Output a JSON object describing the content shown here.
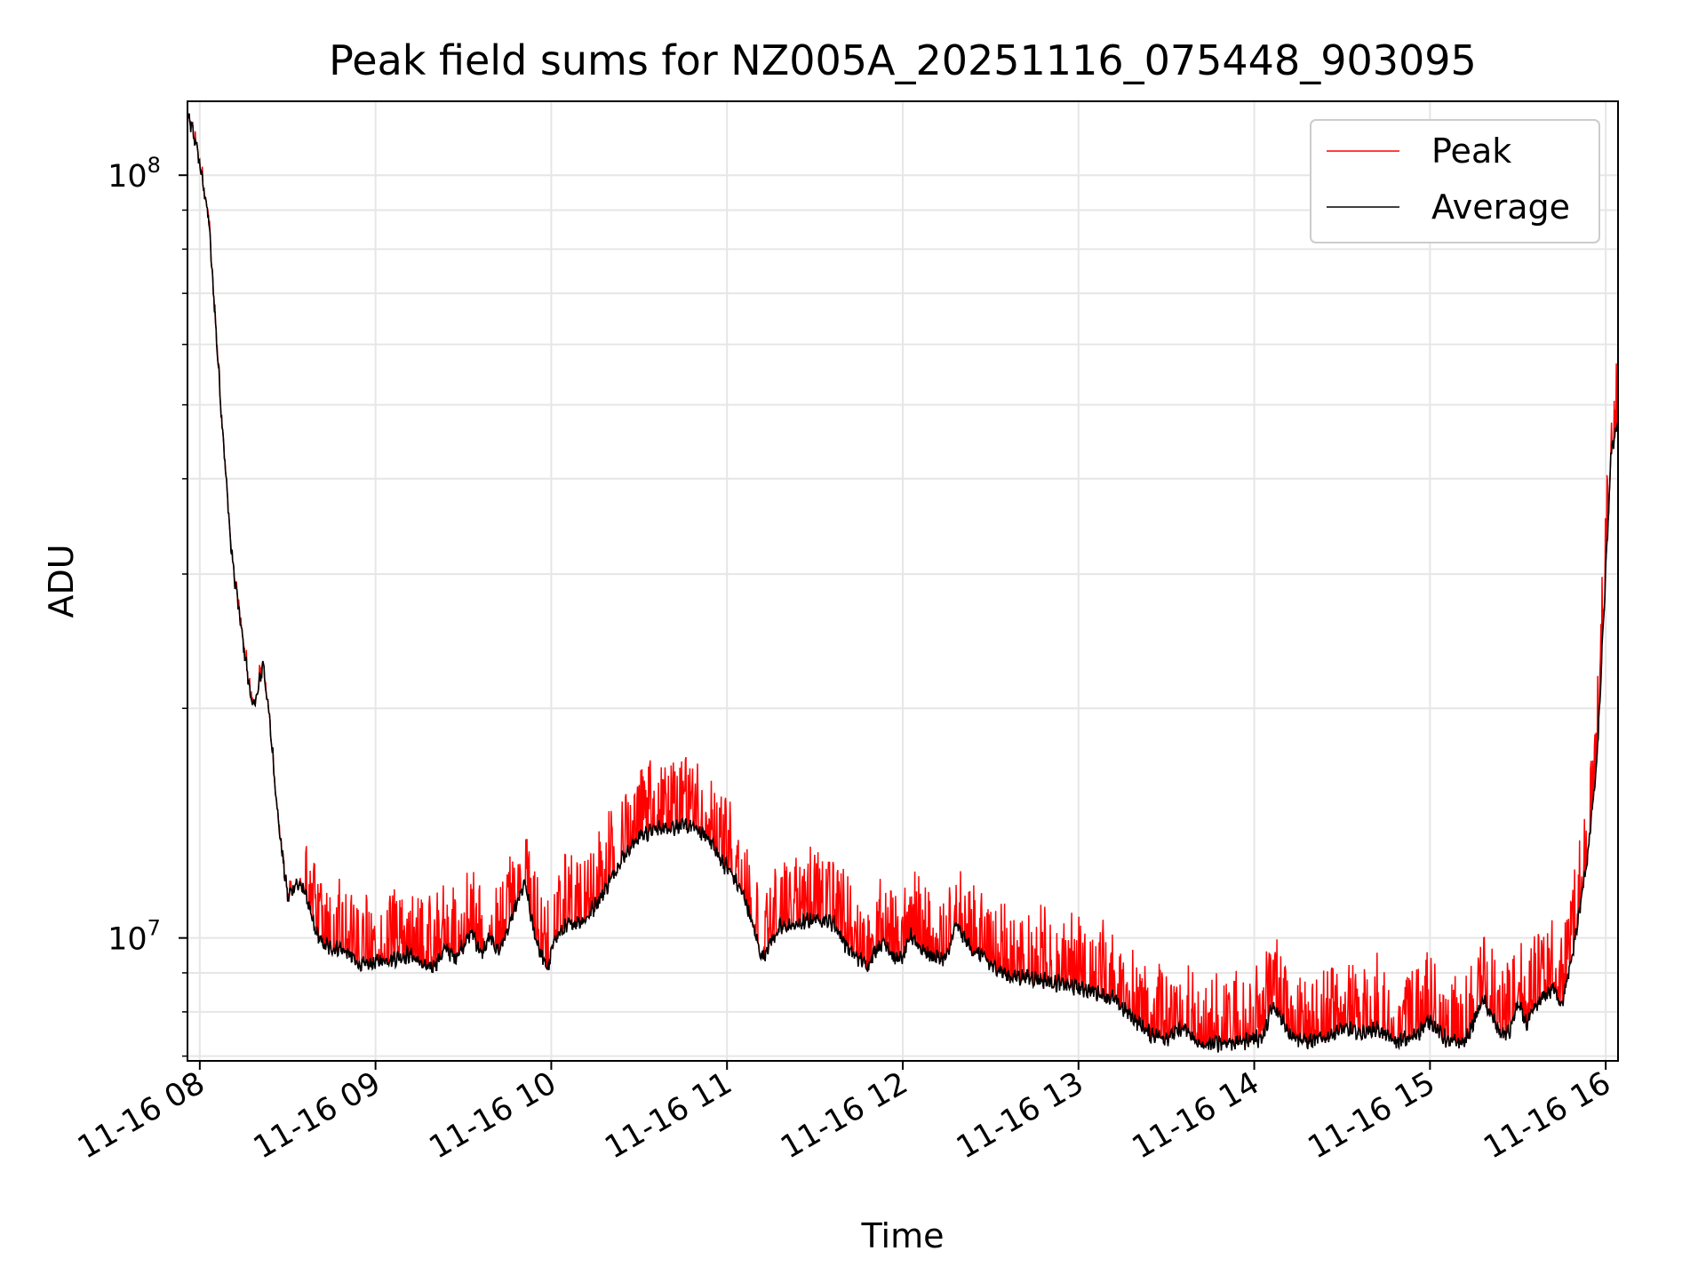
{
  "chart_data": {
    "type": "line",
    "title": "Peak field sums for NZ005A_20251116_075448_903095",
    "xlabel": "Time",
    "ylabel": "ADU",
    "yscale": "log",
    "xlim_hours": [
      7.93,
      16.07
    ],
    "ylim": [
      6900000,
      125000000
    ],
    "grid": true,
    "legend_position": "upper right",
    "x_ticks": [
      {
        "hour": 8,
        "label": "11-16 08"
      },
      {
        "hour": 9,
        "label": "11-16 09"
      },
      {
        "hour": 10,
        "label": "11-16 10"
      },
      {
        "hour": 11,
        "label": "11-16 11"
      },
      {
        "hour": 12,
        "label": "11-16 12"
      },
      {
        "hour": 13,
        "label": "11-16 13"
      },
      {
        "hour": 14,
        "label": "11-16 14"
      },
      {
        "hour": 15,
        "label": "11-16 15"
      },
      {
        "hour": 16,
        "label": "11-16 16"
      }
    ],
    "y_ticks": [
      {
        "value": 10000000,
        "base": "10",
        "exp": "7"
      },
      {
        "value": 100000000,
        "base": "10",
        "exp": "8"
      }
    ],
    "series": [
      {
        "name": "Peak",
        "color": "#ff0000"
      },
      {
        "name": "Average",
        "color": "#000000"
      }
    ],
    "average_curve": {
      "hours": [
        7.93,
        7.98,
        8.05,
        8.12,
        8.18,
        8.24,
        8.3,
        8.33,
        8.36,
        8.4,
        8.45,
        8.5,
        8.55,
        8.6,
        8.65,
        8.7,
        8.75,
        8.8,
        8.85,
        8.9,
        8.95,
        9.0,
        9.1,
        9.2,
        9.3,
        9.35,
        9.4,
        9.45,
        9.5,
        9.55,
        9.6,
        9.65,
        9.7,
        9.75,
        9.8,
        9.85,
        9.9,
        9.95,
        9.98,
        10.02,
        10.1,
        10.2,
        10.3,
        10.4,
        10.5,
        10.6,
        10.7,
        10.8,
        10.9,
        10.95,
        11.02,
        11.1,
        11.15,
        11.2,
        11.25,
        11.3,
        11.4,
        11.5,
        11.6,
        11.7,
        11.8,
        11.85,
        11.9,
        11.95,
        12.0,
        12.05,
        12.1,
        12.15,
        12.2,
        12.25,
        12.3,
        12.35,
        12.4,
        12.45,
        12.5,
        12.55,
        12.6,
        12.7,
        12.8,
        12.9,
        13.0,
        13.1,
        13.2,
        13.3,
        13.4,
        13.5,
        13.6,
        13.7,
        13.8,
        13.9,
        14.0,
        14.05,
        14.1,
        14.15,
        14.2,
        14.3,
        14.4,
        14.5,
        14.6,
        14.7,
        14.8,
        14.9,
        15.0,
        15.1,
        15.2,
        15.3,
        15.4,
        15.45,
        15.5,
        15.55,
        15.6,
        15.65,
        15.7,
        15.75,
        15.8,
        15.85,
        15.9,
        15.95,
        16.0,
        16.03,
        16.07
      ],
      "values": [
        120000000,
        110000000,
        88000000,
        50000000,
        32000000,
        25000000,
        20000000,
        21000000,
        23000000,
        19000000,
        14000000,
        11300000,
        11800000,
        11500000,
        10300000,
        9800000,
        9700000,
        9700000,
        9500000,
        9250000,
        9200000,
        9300000,
        9400000,
        9500000,
        9100000,
        9300000,
        9700000,
        9400000,
        9800000,
        10200000,
        9500000,
        10000000,
        9600000,
        10200000,
        11000000,
        11800000,
        10200000,
        9400000,
        9100000,
        10000000,
        10400000,
        10600000,
        11500000,
        12700000,
        13600000,
        13900000,
        14000000,
        14000000,
        13500000,
        12800000,
        12200000,
        11300000,
        10300000,
        9400000,
        9900000,
        10300000,
        10400000,
        10600000,
        10500000,
        9600000,
        9200000,
        9700000,
        9900000,
        9400000,
        9400000,
        10100000,
        9700000,
        9500000,
        9400000,
        9400000,
        10400000,
        10000000,
        9600000,
        9500000,
        9200000,
        9100000,
        8900000,
        8900000,
        8800000,
        8700000,
        8600000,
        8500000,
        8300000,
        7900000,
        7500000,
        7400000,
        7600000,
        7200000,
        7300000,
        7300000,
        7400000,
        7400000,
        8100000,
        7900000,
        7500000,
        7300000,
        7400000,
        7600000,
        7500000,
        7600000,
        7300000,
        7400000,
        7800000,
        7300000,
        7300000,
        8300000,
        7500000,
        7500000,
        8200000,
        7700000,
        8100000,
        8400000,
        8600000,
        8200000,
        9200000,
        10800000,
        13000000,
        17000000,
        30000000,
        43000000,
        48000000
      ]
    }
  }
}
